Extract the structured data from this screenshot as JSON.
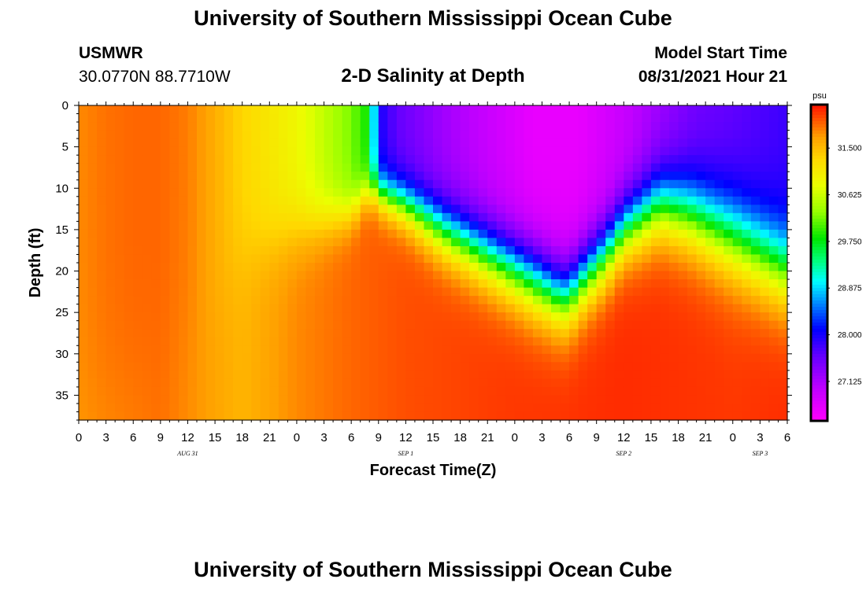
{
  "header": {
    "title": "University of Southern Mississippi Ocean Cube",
    "station": "USMWR",
    "coords": "30.0770N  88.7710W",
    "plot_title": "2-D Salinity at Depth",
    "model_label": "Model Start Time",
    "model_time": "08/31/2021 Hour 21"
  },
  "footer": {
    "title": "University of Southern Mississippi Ocean Cube"
  },
  "chart_data": {
    "type": "heatmap",
    "title": "2-D Salinity at Depth",
    "xlabel": "Forecast Time(Z)",
    "ylabel": "Depth (ft)",
    "x_ticks": [
      "0",
      "3",
      "6",
      "9",
      "12",
      "15",
      "18",
      "21",
      "0",
      "3",
      "6",
      "9",
      "12",
      "15",
      "18",
      "21",
      "0",
      "3",
      "6",
      "9",
      "12",
      "15",
      "18",
      "21",
      "0",
      "3",
      "6"
    ],
    "x_range_hours": [
      0,
      78
    ],
    "date_labels": [
      {
        "label": "AUG 31",
        "hour": 12
      },
      {
        "label": "SEP 1",
        "hour": 36
      },
      {
        "label": "SEP 2",
        "hour": 60
      },
      {
        "label": "SEP 3",
        "hour": 75
      }
    ],
    "y_ticks": [
      0,
      5,
      10,
      15,
      20,
      25,
      30,
      35
    ],
    "y_range_ft": [
      0,
      38
    ],
    "colorbar": {
      "unit": "psu",
      "ticks": [
        "31.500",
        "30.625",
        "29.750",
        "28.875",
        "28.000",
        "27.125"
      ],
      "tick_values": [
        31.5,
        30.625,
        29.75,
        28.875,
        28.0,
        27.125
      ],
      "range": [
        26.4,
        32.3
      ]
    },
    "surface_salinity_by_hour": [
      [
        0,
        31.8
      ],
      [
        3,
        31.9
      ],
      [
        6,
        31.95
      ],
      [
        9,
        31.95
      ],
      [
        12,
        31.85
      ],
      [
        15,
        31.6
      ],
      [
        18,
        31.3
      ],
      [
        21,
        31.1
      ],
      [
        24,
        30.9
      ],
      [
        27,
        30.55
      ],
      [
        30,
        30.2
      ],
      [
        32,
        29.8
      ],
      [
        33,
        28.0
      ],
      [
        35,
        27.6
      ],
      [
        40,
        27.2
      ],
      [
        45,
        26.9
      ],
      [
        50,
        26.6
      ],
      [
        55,
        26.6
      ],
      [
        60,
        26.9
      ],
      [
        64,
        27.2
      ],
      [
        68,
        27.5
      ],
      [
        72,
        27.6
      ],
      [
        78,
        27.8
      ]
    ],
    "bottom_salinity_by_hour": [
      [
        0,
        31.7
      ],
      [
        9,
        31.9
      ],
      [
        18,
        31.55
      ],
      [
        24,
        31.8
      ],
      [
        30,
        31.95
      ],
      [
        36,
        32.05
      ],
      [
        48,
        32.15
      ],
      [
        60,
        32.2
      ],
      [
        72,
        32.15
      ],
      [
        78,
        32.2
      ]
    ],
    "halocline_depth_ft_by_hour": [
      [
        0,
        38
      ],
      [
        12,
        28
      ],
      [
        18,
        18
      ],
      [
        24,
        15
      ],
      [
        27,
        14
      ],
      [
        30,
        13
      ],
      [
        32,
        10
      ],
      [
        36,
        12
      ],
      [
        40,
        15
      ],
      [
        45,
        18
      ],
      [
        50,
        21
      ],
      [
        53,
        23
      ],
      [
        54,
        23
      ],
      [
        55,
        21.5
      ],
      [
        58,
        18
      ],
      [
        60,
        15
      ],
      [
        64,
        12
      ],
      [
        67,
        13
      ],
      [
        72,
        16
      ],
      [
        78,
        20
      ]
    ],
    "halocline_thickness_ft_by_hour": [
      [
        0,
        22
      ],
      [
        12,
        16
      ],
      [
        24,
        9
      ],
      [
        32,
        5
      ],
      [
        40,
        8
      ],
      [
        50,
        10
      ],
      [
        60,
        9
      ],
      [
        72,
        12
      ],
      [
        78,
        12
      ]
    ]
  }
}
